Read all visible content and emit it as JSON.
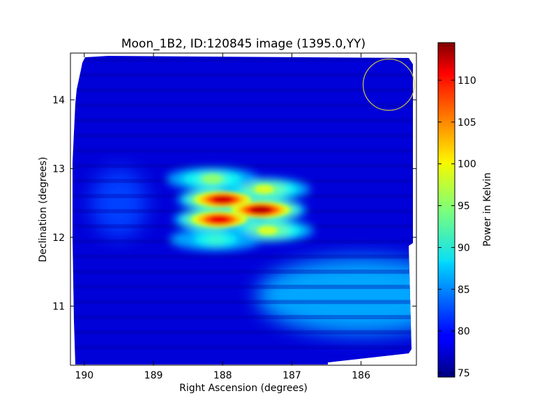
{
  "chart_data": {
    "type": "heatmap",
    "title": "Moon_1B2, ID:120845 image (1395.0,YY)",
    "xlabel": "Right Ascension (degrees)",
    "ylabel": "Declination (degrees)",
    "xlim": [
      190.2,
      185.2
    ],
    "ylim": [
      10.14,
      14.68
    ],
    "x_ticks": [
      190,
      189,
      188,
      187,
      186
    ],
    "x_tick_labels": [
      "190",
      "189",
      "188",
      "187",
      "186"
    ],
    "y_ticks": [
      11,
      12,
      13,
      14
    ],
    "y_tick_labels": [
      "11",
      "12",
      "13",
      "14"
    ],
    "colorbar": {
      "label": "Power in Kelvin",
      "range": [
        74.5,
        114.5
      ],
      "ticks": [
        75,
        80,
        85,
        90,
        95,
        100,
        105,
        110
      ],
      "tick_labels": [
        "75",
        "80",
        "85",
        "90",
        "95",
        "100",
        "105",
        "110"
      ],
      "colormap": "jet"
    },
    "background_level": 78,
    "sources": [
      {
        "ra": 188.0,
        "dec": 12.55,
        "value": 111
      },
      {
        "ra": 187.45,
        "dec": 12.4,
        "value": 112
      },
      {
        "ra": 188.05,
        "dec": 12.26,
        "value": 110
      },
      {
        "ra": 187.4,
        "dec": 12.7,
        "value": 98
      },
      {
        "ra": 187.35,
        "dec": 12.1,
        "value": 98
      },
      {
        "ra": 188.15,
        "dec": 12.85,
        "value": 95
      },
      {
        "ra": 188.1,
        "dec": 11.97,
        "value": 92
      }
    ],
    "diffuse_regions": [
      {
        "ra": 186.0,
        "dec": 11.15,
        "value": 86
      },
      {
        "ra": 189.5,
        "dec": 12.5,
        "value": 82
      }
    ],
    "annotation": {
      "type": "circle",
      "ra": 185.6,
      "dec": 14.22,
      "radius_deg": 0.37,
      "color": "#d4c840"
    },
    "grid": false
  }
}
